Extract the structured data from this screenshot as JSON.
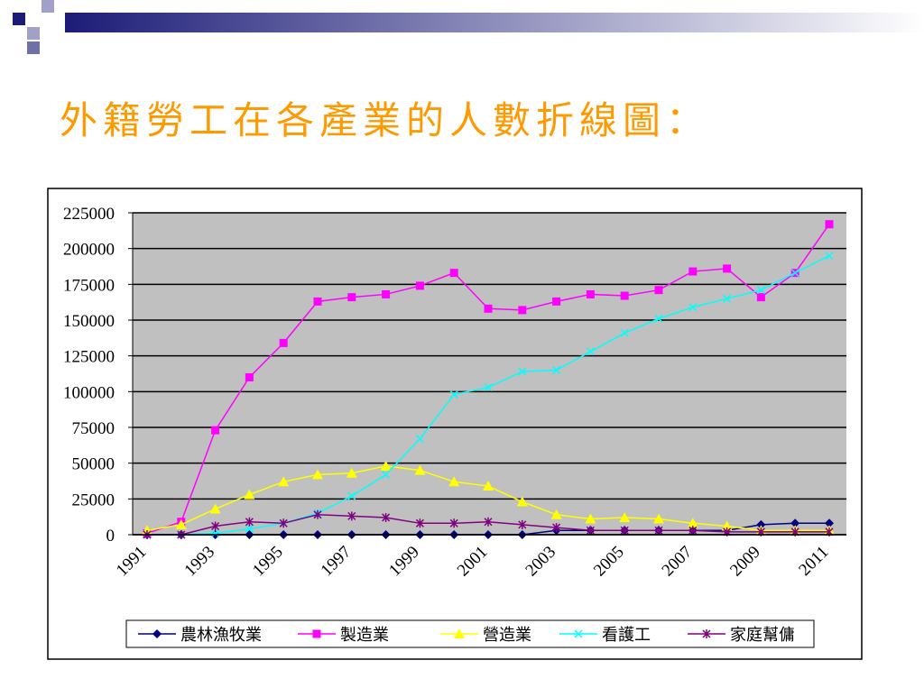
{
  "chart_data": {
    "type": "line",
    "title": "外籍勞工在各產業的人數折線圖：",
    "categories": [
      "1991",
      null,
      "1993",
      null,
      "1995",
      null,
      "1997",
      null,
      "1999",
      null,
      "2001",
      null,
      "2003",
      null,
      "2005",
      null,
      "2007",
      null,
      "2009",
      null,
      "2011"
    ],
    "ylim": [
      0,
      225000
    ],
    "yticks": [
      0,
      25000,
      50000,
      75000,
      100000,
      125000,
      150000,
      175000,
      200000,
      225000
    ],
    "grid": true,
    "legend": "bottom",
    "series": [
      {
        "name": "農林漁牧業",
        "color": "#000080",
        "marker": "diamond",
        "values": [
          0,
          0,
          0,
          0,
          0,
          0,
          0,
          0,
          0,
          0,
          0,
          0,
          3000,
          3000,
          3000,
          3000,
          3000,
          3000,
          7000,
          8000,
          8000
        ]
      },
      {
        "name": "製造業",
        "color": "#ff00ff",
        "marker": "square",
        "values": [
          1000,
          9000,
          73000,
          110000,
          134000,
          163000,
          166000,
          168000,
          174000,
          183000,
          158000,
          157000,
          163000,
          168000,
          167000,
          171000,
          184000,
          186000,
          166000,
          183000,
          217000
        ]
      },
      {
        "name": "營造業",
        "color": "#ffff00",
        "marker": "triangle",
        "values": [
          3000,
          7000,
          18000,
          28000,
          37000,
          42000,
          43000,
          48000,
          45000,
          37000,
          34000,
          23000,
          14000,
          11000,
          12000,
          11000,
          8000,
          6000,
          3000,
          3000,
          3000
        ]
      },
      {
        "name": "看護工",
        "color": "#00ffff",
        "marker": "x",
        "values": [
          0,
          0,
          1000,
          4000,
          8000,
          15000,
          27000,
          42000,
          67000,
          98000,
          103000,
          114000,
          115000,
          128000,
          141000,
          151000,
          159000,
          165000,
          171000,
          183000,
          195000
        ]
      },
      {
        "name": "家庭幫傭",
        "color": "#800080",
        "marker": "star",
        "values": [
          0,
          0,
          6000,
          9000,
          8000,
          14000,
          13000,
          12000,
          8000,
          8000,
          9000,
          7000,
          5000,
          3000,
          3000,
          3000,
          3000,
          2000,
          2000,
          2000,
          2000
        ]
      }
    ]
  }
}
